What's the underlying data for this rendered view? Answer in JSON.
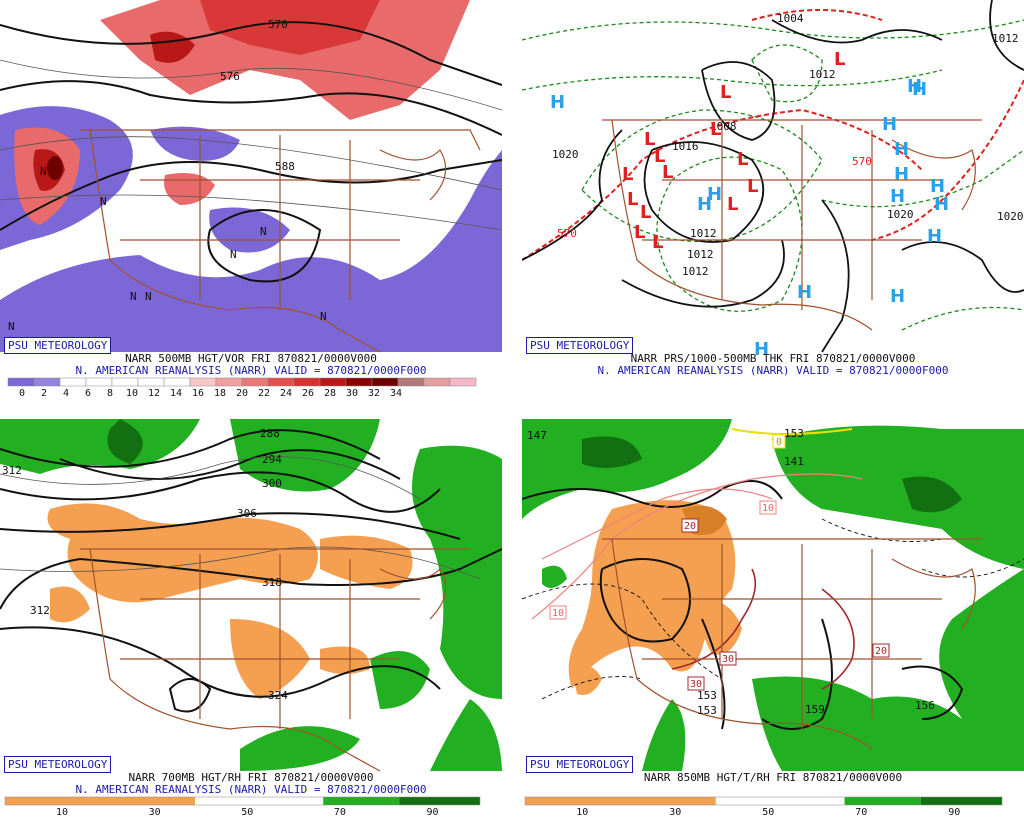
{
  "panels": [
    {
      "badge": "PSU METEOROLOGY",
      "line1": "NARR 500MB HGT/VOR FRI 870821/0000V000",
      "line2": "N. AMERICAN REANALYSIS (NARR) VALID = 870821/0000F000",
      "legend_labels": [
        "0",
        "2",
        "4",
        "6",
        "8",
        "10",
        "12",
        "14",
        "16",
        "18",
        "20",
        "22",
        "24",
        "26",
        "28",
        "30",
        "32",
        "34"
      ],
      "legend_colors": [
        "#7b68d6",
        "#9484de",
        "#ffffff",
        "#ffffff",
        "#ffffff",
        "#ffffff",
        "#ffffff",
        "#f7c8c8",
        "#f1a0a0",
        "#ea7878",
        "#e25050",
        "#d83030",
        "#b81818",
        "#8c0000",
        "#6e0000",
        "#b07878",
        "#e3a0a0",
        "#f4b8c8"
      ],
      "contour_labels": [
        "570",
        "588",
        "576",
        "N",
        "N",
        "N",
        "N",
        "N",
        "N",
        "N",
        "N"
      ]
    },
    {
      "badge": "PSU METEOROLOGY",
      "line1": "NARR PRS/1000-500MB THK FRI 870821/0000V000",
      "line2": "N. AMERICAN REANALYSIS (NARR) VALID = 870821/0000F000",
      "contour_labels": [
        "1004",
        "1012",
        "1020",
        "1008",
        "1016",
        "1012",
        "1012",
        "1020",
        "1020",
        "1012",
        "570",
        "570",
        "1012"
      ],
      "lows": [
        "L",
        "L",
        "L",
        "L",
        "L",
        "L",
        "L",
        "L",
        "L",
        "L",
        "L",
        "L",
        "L",
        "L"
      ],
      "highs": [
        "H",
        "H",
        "H",
        "H",
        "H",
        "H",
        "H",
        "H",
        "H",
        "H",
        "H",
        "H",
        "H",
        "H",
        "H"
      ]
    },
    {
      "badge": "PSU METEOROLOGY",
      "line1": "NARR 700MB HGT/RH FRI 870821/0000V000",
      "line2": "N. AMERICAN REANALYSIS (NARR) VALID = 870821/0000F000",
      "legend_labels": [
        "10",
        "30",
        "50",
        "70",
        "90"
      ],
      "contour_labels": [
        "288",
        "294",
        "300",
        "306",
        "312",
        "318",
        "312",
        "324"
      ]
    },
    {
      "badge": "PSU METEOROLOGY",
      "line1": "NARR 850MB HGT/T/RH FRI 870821/0000V000",
      "line2": "",
      "legend_labels": [
        "10",
        "30",
        "50",
        "70",
        "90"
      ],
      "contour_labels": [
        "147",
        "141",
        "153",
        "153",
        "159",
        "156",
        "153"
      ],
      "temp_labels": [
        "0",
        "20",
        "10",
        "10",
        "30",
        "30",
        "20"
      ]
    }
  ],
  "colors": {
    "vort_blue": "#7b68d6",
    "vort_red": "#e04848",
    "rh_green": "#22b022",
    "rh_dark_green": "#127012",
    "rh_orange": "#f4a050",
    "border_brown": "#a0522d",
    "low_red": "#e02020",
    "high_blue": "#2aa0e8",
    "thickness_red": "#e02020",
    "thickness_green": "#1a8a1a"
  }
}
